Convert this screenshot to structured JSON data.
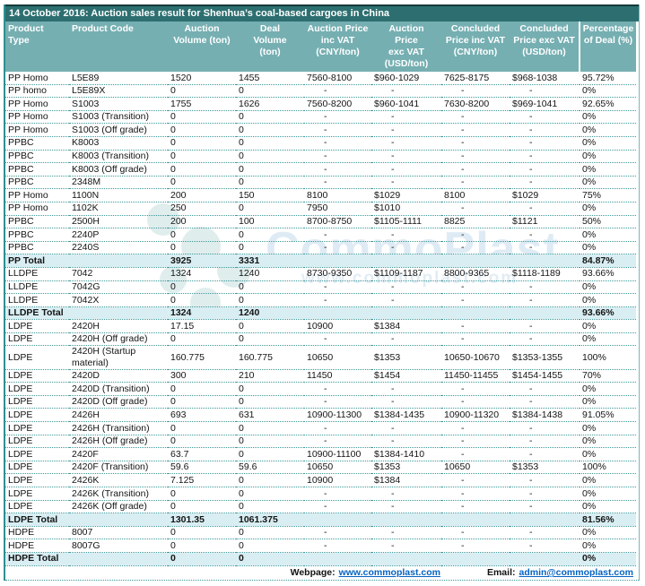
{
  "title": "14 October 2016: Auction sales result for Shenhua’s coal-based cargoes in China",
  "columns": [
    "Product\nType",
    "Product Code",
    "Auction\nVolume (ton)",
    "Deal\nVolume\n(ton)",
    "Auction Price\ninc VAT\n(CNY/ton)",
    "Auction\nPrice\nexc VAT\n(USD/ton)",
    "Concluded\nPrice inc VAT\n(CNY/ton)",
    "Concluded\nPrice exc VAT\n(USD/ton)",
    "Percentage\nof Deal (%)"
  ],
  "rows": [
    {
      "cells": [
        "PP Homo",
        "L5E89",
        "1520",
        "1455",
        "7560-8100",
        "$960-1029",
        "7625-8175",
        "$968-1038",
        "95.72%"
      ],
      "total": false
    },
    {
      "cells": [
        "PP homo",
        "L5E89X",
        "0",
        "0",
        "-",
        "-",
        "-",
        "-",
        "0%"
      ],
      "total": false
    },
    {
      "cells": [
        "PP Homo",
        "S1003",
        "1755",
        "1626",
        "7560-8200",
        "$960-1041",
        "7630-8200",
        "$969-1041",
        "92.65%"
      ],
      "total": false
    },
    {
      "cells": [
        "PP Homo",
        "S1003 (Transition)",
        "0",
        "0",
        "-",
        "-",
        "-",
        "-",
        "0%"
      ],
      "total": false
    },
    {
      "cells": [
        "PP Homo",
        "S1003 (Off grade)",
        "0",
        "0",
        "-",
        "-",
        "-",
        "-",
        "0%"
      ],
      "total": false
    },
    {
      "cells": [
        "PPBC",
        "K8003",
        "0",
        "0",
        "-",
        "-",
        "-",
        "-",
        "0%"
      ],
      "total": false
    },
    {
      "cells": [
        "PPBC",
        "K8003 (Transition)",
        "0",
        "0",
        "-",
        "-",
        "-",
        "-",
        "0%"
      ],
      "total": false
    },
    {
      "cells": [
        "PPBC",
        "K8003 (Off grade)",
        "0",
        "0",
        "-",
        "-",
        "-",
        "-",
        "0%"
      ],
      "total": false
    },
    {
      "cells": [
        "PPBC",
        "2348M",
        "0",
        "0",
        "-",
        "-",
        "-",
        "-",
        "0%"
      ],
      "total": false
    },
    {
      "cells": [
        "PP Homo",
        "1100N",
        "200",
        "150",
        "8100",
        "$1029",
        "8100",
        "$1029",
        "75%"
      ],
      "total": false
    },
    {
      "cells": [
        "PP Homo",
        "1102K",
        "250",
        "0",
        "7950",
        "$1010",
        "-",
        "-",
        "0%"
      ],
      "total": false
    },
    {
      "cells": [
        "PPBC",
        "2500H",
        "200",
        "100",
        "8700-8750",
        "$1105-1111",
        "8825",
        "$1121",
        "50%"
      ],
      "total": false
    },
    {
      "cells": [
        "PPBC",
        "2240P",
        "0",
        "0",
        "-",
        "-",
        "-",
        "-",
        "0%"
      ],
      "total": false
    },
    {
      "cells": [
        "PPBC",
        "2240S",
        "0",
        "0",
        "-",
        "-",
        "-",
        "-",
        "0%"
      ],
      "total": false
    },
    {
      "cells": [
        "PP Total",
        "",
        "3925",
        "3331",
        "",
        "",
        "",
        "",
        "84.87%"
      ],
      "total": true
    },
    {
      "cells": [
        "LLDPE",
        "7042",
        "1324",
        "1240",
        "8730-9350",
        "$1109-1187",
        "8800-9365",
        "$1118-1189",
        "93.66%"
      ],
      "total": false
    },
    {
      "cells": [
        "LLDPE",
        "7042G",
        "0",
        "0",
        "-",
        "-",
        "-",
        "-",
        "0%"
      ],
      "total": false
    },
    {
      "cells": [
        "LLDPE",
        "7042X",
        "0",
        "0",
        "-",
        "-",
        "-",
        "-",
        "0%"
      ],
      "total": false
    },
    {
      "cells": [
        "LLDPE Total",
        "",
        "1324",
        "1240",
        "",
        "",
        "",
        "",
        "93.66%"
      ],
      "total": true
    },
    {
      "cells": [
        "LDPE",
        "2420H",
        "17.15",
        "0",
        "10900",
        "$1384",
        "-",
        "-",
        "0%"
      ],
      "total": false
    },
    {
      "cells": [
        "LDPE",
        "2420H (Off grade)",
        "0",
        "0",
        "-",
        "-",
        "-",
        "-",
        "0%"
      ],
      "total": false
    },
    {
      "cells": [
        "LDPE",
        "2420H (Startup material)",
        "160.775",
        "160.775",
        "10650",
        "$1353",
        "10650-10670",
        "$1353-1355",
        "100%"
      ],
      "total": false
    },
    {
      "cells": [
        "LDPE",
        "2420D",
        "300",
        "210",
        "11450",
        "$1454",
        "11450-11455",
        "$1454-1455",
        "70%"
      ],
      "total": false
    },
    {
      "cells": [
        "LDPE",
        "2420D (Transition)",
        "0",
        "0",
        "-",
        "-",
        "-",
        "-",
        "0%"
      ],
      "total": false
    },
    {
      "cells": [
        "LDPE",
        "2420D (Off grade)",
        "0",
        "0",
        "-",
        "-",
        "-",
        "-",
        "0%"
      ],
      "total": false
    },
    {
      "cells": [
        "LDPE",
        "2426H",
        "693",
        "631",
        "10900-11300",
        "$1384-1435",
        "10900-11320",
        "$1384-1438",
        "91.05%"
      ],
      "total": false
    },
    {
      "cells": [
        "LDPE",
        "2426H (Transition)",
        "0",
        "0",
        "-",
        "-",
        "-",
        "-",
        "0%"
      ],
      "total": false
    },
    {
      "cells": [
        "LDPE",
        "2426H (Off grade)",
        "0",
        "0",
        "-",
        "-",
        "-",
        "-",
        "0%"
      ],
      "total": false
    },
    {
      "cells": [
        "LDPE",
        "2420F",
        "63.7",
        "0",
        "10900-11100",
        "$1384-1410",
        "-",
        "-",
        "0%"
      ],
      "total": false
    },
    {
      "cells": [
        "LDPE",
        "2420F (Transition)",
        "59.6",
        "59.6",
        "10650",
        "$1353",
        "10650",
        "$1353",
        "100%"
      ],
      "total": false
    },
    {
      "cells": [
        "LDPE",
        "2426K",
        "7.125",
        "0",
        "10900",
        "$1384",
        "-",
        "-",
        "0%"
      ],
      "total": false
    },
    {
      "cells": [
        "LDPE",
        "2426K (Transition)",
        "0",
        "0",
        "-",
        "-",
        "-",
        "-",
        "0%"
      ],
      "total": false
    },
    {
      "cells": [
        "LDPE",
        "2426K (Off grade)",
        "0",
        "0",
        "-",
        "-",
        "-",
        "-",
        "0%"
      ],
      "total": false
    },
    {
      "cells": [
        "LDPE Total",
        "",
        "1301.35",
        "1061.375",
        "",
        "",
        "",
        "",
        "81.56%"
      ],
      "total": true
    },
    {
      "cells": [
        "HDPE",
        "8007",
        "0",
        "0",
        "-",
        "-",
        "-",
        "-",
        "0%"
      ],
      "total": false
    },
    {
      "cells": [
        "HDPE",
        "8007G",
        "0",
        "0",
        "-",
        "-",
        "-",
        "-",
        "0%"
      ],
      "total": false
    },
    {
      "cells": [
        "HDPE Total",
        "",
        "0",
        "0",
        "",
        "",
        "",
        "",
        "0%"
      ],
      "total": true
    }
  ],
  "footer": {
    "webpage_label": "Webpage:",
    "webpage_url": "www.commoplast.com",
    "email_label": "Email:",
    "email_address": "admin@commoplast.com"
  },
  "watermark": {
    "brand": "CommoPlast",
    "url": "www.commoplast.com"
  },
  "colors": {
    "title_bar": "#2d6f70",
    "header_band": "#76afb2",
    "total_row_bg": "#d9eef3",
    "grid_dotted": "#3d9899",
    "link_blue": "#0563c1"
  }
}
